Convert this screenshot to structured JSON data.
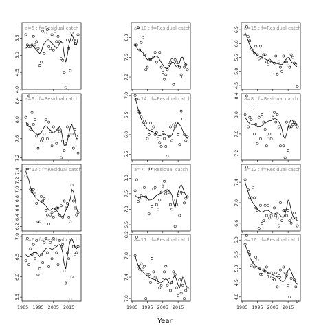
{
  "chart_data": {
    "type": "scatter",
    "xlabel": "Year",
    "x_ticks": [
      1985,
      1995,
      2005,
      2015
    ],
    "xlim": [
      1984.5,
      2023
    ],
    "years": [
      1987,
      1988,
      1989,
      1990,
      1991,
      1992,
      1993,
      1994,
      1995,
      1996,
      1997,
      1998,
      1999,
      2000,
      2001,
      2002,
      2003,
      2004,
      2005,
      2006,
      2007,
      2008,
      2009,
      2010,
      2011,
      2012,
      2013,
      2014,
      2015,
      2016,
      2017,
      2018,
      2019,
      2020,
      2021
    ],
    "panels": [
      {
        "label": "a=5 : f=Residual catch",
        "ylim": [
          4.0,
          5.95
        ],
        "yticks": [
          4.0,
          4.5,
          5.0,
          5.5
        ],
        "points": [
          5.6,
          5.3,
          5.25,
          5.25,
          5.3,
          5.55,
          5.3,
          5.4,
          5.2,
          4.7,
          4.8,
          5.7,
          5.05,
          5.65,
          5.75,
          5.25,
          5.2,
          5.6,
          5.15,
          5.7,
          5.4,
          5.55,
          5.4,
          4.9,
          4.85,
          4.5,
          4.05,
          5.45,
          5.2,
          4.55,
          5.65,
          5.45,
          5.35,
          5.45,
          5.6
        ],
        "fit": [
          5.2,
          5.25,
          5.3,
          5.3,
          5.3,
          5.25,
          5.2,
          5.15,
          5.1,
          5.05,
          5.1,
          5.25,
          5.35,
          5.4,
          5.45,
          5.45,
          5.4,
          5.35,
          5.3,
          5.25,
          5.2,
          5.25,
          5.35,
          5.4,
          5.35,
          5.0,
          4.8,
          5.0,
          5.3,
          5.45,
          5.6,
          5.5,
          5.3,
          5.3,
          5.5
        ]
      },
      {
        "label": "a=9 : f=Residual catch",
        "ylim": [
          7.15,
          8.55
        ],
        "yticks": [
          7.2,
          7.6,
          8.0,
          8.4
        ],
        "points": [
          8.05,
          7.9,
          8.5,
          7.8,
          8.15,
          7.9,
          8.0,
          7.65,
          7.4,
          7.7,
          7.55,
          7.6,
          7.7,
          8.0,
          7.6,
          7.95,
          7.75,
          7.45,
          7.85,
          7.55,
          7.5,
          7.8,
          7.75,
          7.2,
          7.55,
          7.35,
          7.5,
          7.85,
          7.65,
          7.7,
          7.7,
          7.4,
          7.8,
          7.65,
          7.3
        ],
        "fit": [
          7.95,
          7.9,
          7.85,
          7.85,
          7.8,
          7.75,
          7.72,
          7.7,
          7.68,
          7.7,
          7.73,
          7.78,
          7.85,
          7.87,
          7.85,
          7.8,
          7.78,
          7.75,
          7.72,
          7.75,
          7.78,
          7.82,
          7.85,
          7.8,
          7.6,
          7.45,
          7.45,
          7.55,
          7.7,
          7.85,
          7.9,
          7.8,
          7.7,
          7.6,
          7.6
        ]
      },
      {
        "label": "a=13 : f=Residual catch",
        "ylim": [
          6.1,
          7.55
        ],
        "yticks": [
          6.2,
          6.4,
          6.6,
          6.8,
          7.0,
          7.2,
          7.4
        ],
        "points": [
          7.3,
          7.45,
          7.45,
          7.0,
          6.95,
          7.0,
          6.9,
          6.7,
          6.3,
          6.3,
          6.85,
          6.75,
          6.8,
          6.55,
          6.45,
          6.25,
          6.45,
          6.5,
          6.4,
          6.55,
          6.6,
          6.6,
          6.45,
          6.65,
          6.4,
          6.75,
          6.6,
          6.7,
          6.4,
          6.3,
          7.1,
          6.75,
          6.6,
          6.45,
          6.5
        ],
        "fit": [
          7.4,
          7.3,
          7.2,
          7.05,
          6.95,
          6.9,
          6.85,
          6.8,
          6.78,
          6.75,
          6.73,
          6.7,
          6.68,
          6.65,
          6.6,
          6.55,
          6.55,
          6.58,
          6.6,
          6.58,
          6.55,
          6.5,
          6.45,
          6.42,
          6.4,
          6.45,
          6.55,
          6.6,
          6.7,
          6.8,
          7.0,
          6.95,
          6.8,
          6.6,
          6.5
        ]
      },
      {
        "label": "a=6 : f=Residual catch",
        "ylim": [
          5.4,
          7.05
        ],
        "yticks": [
          5.5,
          6.0,
          6.5,
          7.0
        ],
        "points": [
          6.4,
          6.95,
          6.3,
          6.7,
          6.55,
          6.8,
          6.45,
          6.9,
          6.05,
          6.2,
          6.55,
          6.35,
          6.85,
          6.95,
          6.6,
          6.25,
          6.85,
          6.45,
          6.95,
          6.75,
          6.6,
          6.3,
          6.9,
          6.75,
          6.8,
          6.15,
          5.85,
          6.6,
          6.45,
          5.45,
          6.0,
          6.75,
          6.55,
          6.6,
          6.75
        ],
        "fit": [
          6.55,
          6.5,
          6.5,
          6.55,
          6.55,
          6.6,
          6.6,
          6.6,
          6.55,
          6.5,
          6.55,
          6.6,
          6.65,
          6.7,
          6.72,
          6.72,
          6.7,
          6.68,
          6.7,
          6.72,
          6.75,
          6.78,
          6.8,
          6.75,
          6.6,
          6.3,
          6.2,
          6.5,
          6.75,
          6.9,
          6.95,
          6.85,
          6.75,
          6.7,
          6.75
        ]
      },
      {
        "label": "a=10 : f=Residual catch",
        "ylim": [
          6.95,
          8.3
        ],
        "yticks": [
          7.2,
          7.6,
          8.0
        ],
        "points": [
          7.85,
          7.85,
          8.2,
          7.75,
          7.9,
          8.0,
          7.65,
          7.35,
          7.4,
          7.55,
          7.55,
          7.55,
          7.6,
          7.7,
          7.5,
          7.65,
          7.7,
          7.4,
          7.3,
          7.15,
          7.25,
          7.35,
          7.45,
          7.5,
          7.55,
          7.05,
          7.55,
          7.5,
          7.45,
          7.4,
          7.25,
          7.2,
          7.4,
          7.45,
          7.35
        ],
        "fit": [
          7.85,
          7.8,
          7.75,
          7.75,
          7.72,
          7.7,
          7.65,
          7.6,
          7.55,
          7.55,
          7.55,
          7.58,
          7.6,
          7.62,
          7.62,
          7.6,
          7.55,
          7.5,
          7.45,
          7.4,
          7.38,
          7.38,
          7.4,
          7.45,
          7.5,
          7.5,
          7.45,
          7.4,
          7.4,
          7.5,
          7.6,
          7.6,
          7.5,
          7.45,
          7.45
        ]
      },
      {
        "label": "a=14 : f=Residual catch",
        "ylim": [
          5.35,
          7.05
        ],
        "yticks": [
          5.5,
          6.0,
          6.5,
          7.0
        ],
        "points": [
          7.0,
          6.9,
          6.6,
          6.55,
          6.45,
          6.4,
          6.35,
          6.3,
          5.9,
          6.0,
          6.3,
          6.1,
          6.2,
          6.0,
          6.05,
          5.9,
          5.8,
          5.7,
          6.05,
          5.9,
          5.7,
          5.45,
          5.95,
          6.2,
          5.85,
          6.25,
          6.2,
          6.3,
          6.0,
          5.75,
          6.6,
          6.4,
          6.0,
          5.85,
          5.95
        ],
        "fit": [
          6.95,
          6.8,
          6.65,
          6.5,
          6.4,
          6.3,
          6.25,
          6.2,
          6.15,
          6.12,
          6.1,
          6.08,
          6.05,
          6.03,
          6.0,
          5.98,
          5.97,
          5.98,
          6.0,
          6.02,
          6.0,
          5.98,
          5.95,
          5.95,
          6.0,
          6.1,
          6.2,
          6.25,
          6.3,
          6.25,
          6.2,
          6.1,
          6.0,
          5.95,
          5.9
        ]
      },
      {
        "label": "a=7 : f=Residual catch",
        "ylim": [
          6.3,
          8.45
        ],
        "yticks": [
          6.5,
          7.0,
          7.5,
          8.0
        ],
        "points": [
          7.6,
          7.95,
          7.25,
          7.35,
          7.45,
          7.65,
          7.7,
          7.4,
          7.3,
          6.85,
          8.3,
          7.1,
          7.65,
          7.7,
          7.15,
          7.0,
          7.3,
          7.55,
          7.75,
          7.9,
          7.5,
          7.6,
          7.55,
          7.15,
          7.0,
          7.3,
          6.45,
          7.15,
          7.45,
          6.8,
          7.55,
          7.5,
          7.2,
          7.35,
          7.4
        ],
        "fit": [
          7.45,
          7.4,
          7.38,
          7.38,
          7.4,
          7.42,
          7.42,
          7.4,
          7.35,
          7.3,
          7.3,
          7.32,
          7.35,
          7.4,
          7.45,
          7.48,
          7.5,
          7.52,
          7.55,
          7.58,
          7.6,
          7.62,
          7.6,
          7.55,
          7.45,
          7.2,
          7.05,
          7.3,
          7.55,
          7.7,
          7.8,
          7.7,
          7.55,
          7.45,
          7.4
        ]
      },
      {
        "label": "a=11 : f=Residual catch",
        "ylim": [
          6.95,
          8.2
        ],
        "yticks": [
          7.0,
          7.4,
          7.8,
          8.2
        ],
        "points": [
          7.8,
          8.15,
          7.6,
          7.55,
          7.65,
          7.55,
          7.6,
          7.0,
          7.45,
          7.45,
          7.3,
          7.75,
          7.5,
          7.4,
          7.35,
          7.3,
          7.2,
          7.25,
          7.35,
          7.5,
          7.6,
          7.25,
          7.35,
          7.15,
          7.3,
          7.5,
          7.45,
          7.2,
          7.05,
          7.35,
          7.1,
          7.25,
          7.0,
          7.15,
          7.2
        ],
        "fit": [
          7.8,
          7.7,
          7.62,
          7.55,
          7.52,
          7.5,
          7.47,
          7.45,
          7.42,
          7.4,
          7.38,
          7.37,
          7.36,
          7.35,
          7.33,
          7.32,
          7.3,
          7.3,
          7.32,
          7.35,
          7.37,
          7.35,
          7.3,
          7.27,
          7.3,
          7.4,
          7.42,
          7.35,
          7.25,
          7.2,
          7.3,
          7.4,
          7.35,
          7.25,
          7.2
        ]
      },
      {
        "label": "a=15 : f=Residual catch",
        "ylim": [
          4.35,
          6.75
        ],
        "yticks": [
          4.5,
          5.0,
          5.5,
          6.0,
          6.5
        ],
        "points": [
          6.3,
          6.6,
          6.25,
          6.1,
          5.8,
          5.75,
          5.65,
          5.9,
          5.6,
          5.45,
          5.9,
          5.5,
          5.6,
          5.6,
          5.35,
          5.25,
          5.4,
          5.35,
          4.95,
          5.3,
          5.55,
          4.9,
          5.35,
          5.15,
          5.0,
          5.55,
          5.35,
          5.35,
          5.2,
          5.15,
          5.6,
          5.5,
          5.3,
          5.25,
          4.45
        ],
        "fit": [
          6.4,
          6.25,
          6.1,
          5.95,
          5.85,
          5.75,
          5.68,
          5.62,
          5.58,
          5.55,
          5.52,
          5.5,
          5.48,
          5.45,
          5.42,
          5.4,
          5.38,
          5.35,
          5.33,
          5.32,
          5.3,
          5.28,
          5.27,
          5.25,
          5.25,
          5.3,
          5.4,
          5.45,
          5.5,
          5.45,
          5.35,
          5.3,
          5.25,
          5.2,
          5.15
        ]
      },
      {
        "label": "a=8 : f=Residual catch",
        "ylim": [
          7.05,
          8.45
        ],
        "yticks": [
          7.2,
          7.6,
          8.0,
          8.4
        ],
        "points": [
          8.0,
          8.4,
          7.75,
          7.95,
          7.9,
          8.1,
          7.6,
          7.8,
          7.4,
          7.95,
          7.5,
          8.0,
          7.85,
          7.7,
          7.35,
          7.55,
          7.6,
          7.5,
          7.95,
          8.05,
          7.85,
          8.0,
          7.75,
          7.35,
          7.6,
          7.35,
          7.1,
          7.85,
          7.25,
          7.75,
          7.75,
          7.8,
          7.85,
          7.8,
          7.75
        ],
        "fit": [
          7.95,
          7.9,
          7.85,
          7.82,
          7.8,
          7.8,
          7.8,
          7.78,
          7.75,
          7.75,
          7.75,
          7.78,
          7.8,
          7.82,
          7.85,
          7.87,
          7.88,
          7.88,
          7.9,
          7.92,
          7.92,
          7.9,
          7.85,
          7.8,
          7.7,
          7.55,
          7.5,
          7.6,
          7.75,
          7.85,
          7.9,
          7.88,
          7.82,
          7.8,
          7.8
        ]
      },
      {
        "label": "a=12 : f=Residual catch",
        "ylim": [
          6.45,
          7.75
        ],
        "yticks": [
          6.6,
          7.0,
          7.4
        ],
        "points": [
          7.45,
          7.7,
          7.25,
          7.1,
          7.1,
          7.3,
          7.1,
          6.9,
          6.85,
          6.5,
          6.95,
          6.6,
          6.65,
          6.95,
          6.75,
          6.95,
          6.7,
          6.75,
          6.8,
          6.9,
          6.75,
          6.7,
          6.55,
          7.0,
          6.65,
          6.85,
          6.85,
          6.75,
          6.85,
          6.65,
          6.6,
          6.7,
          6.8,
          6.7,
          6.55
        ],
        "fit": [
          7.4,
          7.3,
          7.2,
          7.12,
          7.05,
          7.0,
          6.96,
          6.92,
          6.88,
          6.85,
          6.82,
          6.82,
          6.83,
          6.85,
          6.85,
          6.85,
          6.83,
          6.8,
          6.78,
          6.78,
          6.8,
          6.8,
          6.78,
          6.75,
          6.72,
          6.72,
          6.78,
          6.9,
          7.05,
          7.0,
          6.85,
          6.75,
          6.7,
          6.68,
          6.65
        ]
      },
      {
        "label": "a=16 : f=Residual catch",
        "ylim": [
          3.85,
          6.2
        ],
        "yticks": [
          4.0,
          4.5,
          5.0,
          5.5,
          6.0
        ],
        "points": [
          5.85,
          6.15,
          5.6,
          5.5,
          5.1,
          5.2,
          5.05,
          5.4,
          5.3,
          5.0,
          4.8,
          4.8,
          4.95,
          4.9,
          5.05,
          4.8,
          4.7,
          4.85,
          4.65,
          4.6,
          4.85,
          4.35,
          4.75,
          4.95,
          4.7,
          5.05,
          4.85,
          4.75,
          4.4,
          4.0,
          4.65,
          4.85,
          4.6,
          4.35,
          3.85
        ],
        "fit": [
          5.85,
          5.7,
          5.55,
          5.4,
          5.3,
          5.22,
          5.15,
          5.1,
          5.05,
          5.0,
          4.97,
          4.95,
          4.92,
          4.9,
          4.88,
          4.85,
          4.82,
          4.8,
          4.78,
          4.75,
          4.72,
          4.7,
          4.65,
          4.6,
          4.55,
          4.55,
          4.6,
          4.75,
          4.95,
          5.0,
          4.9,
          4.75,
          4.6,
          4.5,
          4.45
        ]
      }
    ]
  }
}
